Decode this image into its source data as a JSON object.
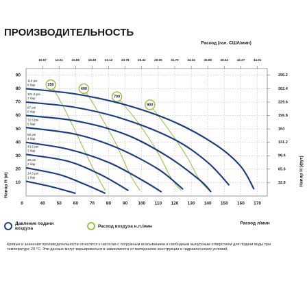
{
  "chart_data": {
    "type": "line",
    "title": "ПРОИЗВОДИТЕЛЬНОСТЬ",
    "x_label": "Расход л/мин",
    "x2_label": "Расход (гал. США/мин)",
    "y_label": "Напор Н (м)",
    "y2_label": "Напор Н (фут)",
    "x_origin_label": "0",
    "xlim": [
      30,
      176
    ],
    "xticks": [
      40,
      50,
      60,
      70,
      80,
      90,
      100,
      110,
      120,
      130,
      140,
      150,
      160,
      170
    ],
    "x2lim": [
      7.93,
      46.49
    ],
    "x2ticks": [
      10.57,
      13.21,
      15.85,
      18.49,
      21.13,
      23.78,
      26.42,
      29.06,
      {
        "value": 31.7,
        "label": "31.70"
      },
      34.34,
      36.98,
      39.62,
      42.27,
      44.91
    ],
    "ylim": [
      0,
      95
    ],
    "yticks": [
      10,
      20,
      30,
      40,
      50,
      60,
      70,
      80,
      90
    ],
    "y2lim": [
      0,
      311.6
    ],
    "y2ticks": [
      32.8,
      65.6,
      98.4,
      131.2,
      164,
      196.8,
      229.6,
      262.4,
      295.2
    ],
    "grid": true,
    "legend": {
      "pressure": "Давление подачи воздуха",
      "air": "Расход воздуха н.л./мин"
    },
    "pressure_color": "#1d3f7c",
    "air_color": "#9cbf4a",
    "psi_color": "#c0392b",
    "pressure_series": [
      {
        "psi_label": "116 psi",
        "bar_label": "8 бар",
        "x": [
          30,
          60,
          90,
          120,
          145,
          160,
          168
        ],
        "values": [
          80,
          76,
          68,
          55,
          38,
          22,
          5
        ]
      },
      {
        "psi_label": "101.5 psi",
        "bar_label": "7 бар",
        "x": [
          30,
          60,
          90,
          120,
          140,
          153
        ],
        "values": [
          70,
          66,
          57,
          42,
          25,
          8
        ]
      },
      {
        "psi_label": "87 psi",
        "bar_label": "6 бар",
        "x": [
          30,
          60,
          90,
          115,
          135,
          142
        ],
        "values": [
          60,
          56,
          46,
          30,
          12,
          3
        ]
      },
      {
        "psi_label": "72.5 psi",
        "bar_label": "5 бар",
        "x": [
          30,
          60,
          85,
          110,
          125
        ],
        "values": [
          51,
          46,
          36,
          20,
          5
        ]
      },
      {
        "psi_label": "58 psi",
        "bar_label": "4 бар",
        "x": [
          30,
          55,
          80,
          100,
          112
        ],
        "values": [
          40,
          35,
          25,
          12,
          3
        ]
      },
      {
        "psi_label": "43.5 psi",
        "bar_label": "3 бар",
        "x": [
          30,
          55,
          75,
          92
        ],
        "values": [
          31,
          26,
          16,
          4
        ]
      },
      {
        "psi_label": "29 psi",
        "bar_label": "2 бар",
        "x": [
          30,
          50,
          65,
          78
        ],
        "values": [
          21,
          16,
          9,
          2
        ]
      },
      {
        "psi_label": "14.5 psi",
        "bar_label": "1 бар",
        "x": [
          30,
          45,
          60
        ],
        "values": [
          11,
          7,
          2
        ]
      }
    ],
    "air_series": [
      {
        "name": "250",
        "x": [
          45,
          52,
          60,
          70,
          78
        ],
        "values": [
          83,
          68,
          48,
          22,
          4
        ]
      },
      {
        "name": "400",
        "x": [
          65,
          74,
          84,
          93,
          99
        ],
        "values": [
          80,
          62,
          40,
          16,
          4
        ]
      },
      {
        "name": "700",
        "x": [
          85,
          97,
          109,
          118,
          124
        ],
        "values": [
          74,
          56,
          34,
          13,
          4
        ]
      },
      {
        "name": "900",
        "x": [
          105,
          116,
          127,
          135,
          141
        ],
        "values": [
          68,
          50,
          30,
          12,
          4
        ]
      }
    ]
  },
  "footnote": "Кривые и значения производительности относятся к насосам с погружным всасыванием и свободным выпускным отверстием для подачи воды при температуре 20 °C. Эти данные могут варьироваться в зависимости от материалов конструкции и гидравлических условий."
}
